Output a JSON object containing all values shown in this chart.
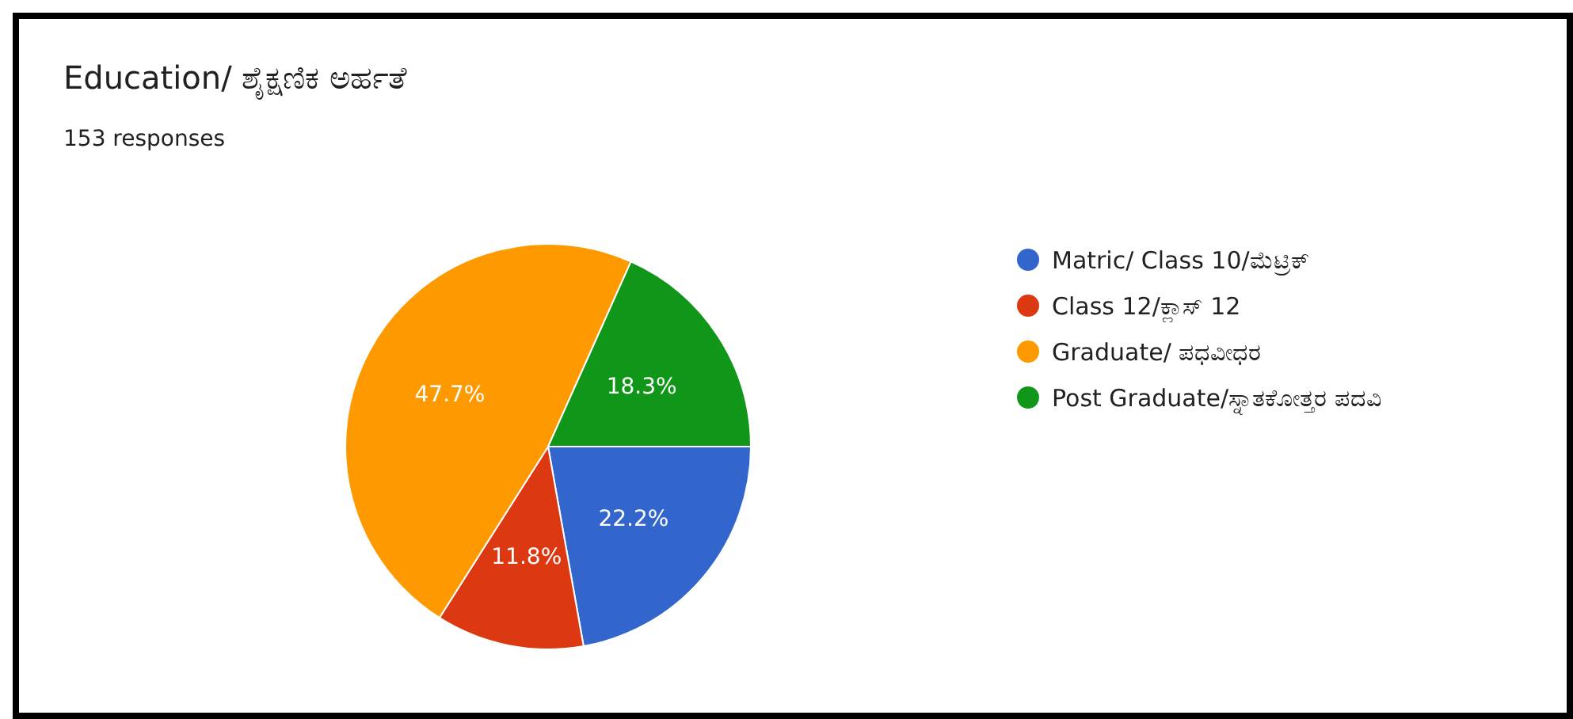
{
  "chart_data": {
    "type": "pie",
    "title": "Education/ ಶೈಕ್ಷಣಿಕ ಅರ್ಹತೆ",
    "subtitle": "153 responses",
    "categories": [
      "Matric/ Class 10/ಮೆಟ್ರಿಕ್",
      "Class 12/ಕ್ಲಾಸ್ 12",
      "Graduate/ ಪಧವೀಧರ",
      "Post Graduate/ಸ್ನಾತಕೋತ್ತರ ಪದವಿ"
    ],
    "values": [
      22.2,
      11.8,
      47.7,
      18.3
    ],
    "colors": [
      "#3366cc",
      "#dc3912",
      "#ff9900",
      "#109618"
    ],
    "value_labels": [
      "22.2%",
      "11.8%",
      "47.7%",
      "18.3%"
    ],
    "legend": "right"
  }
}
